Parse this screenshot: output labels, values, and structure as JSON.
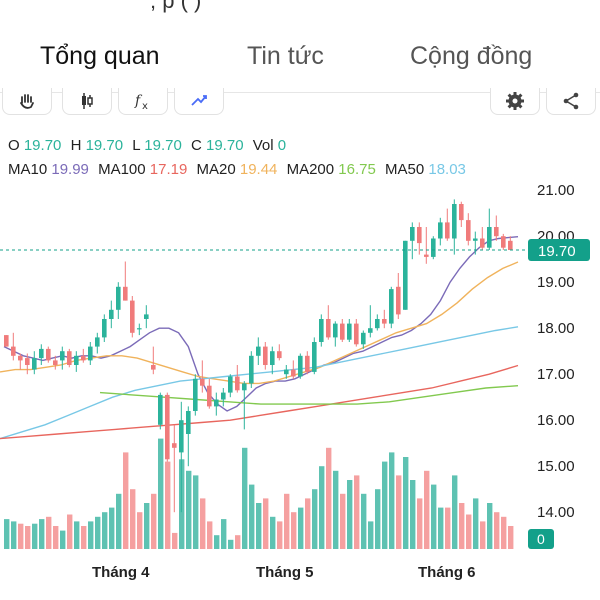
{
  "header": {
    "partial_text": "; p    (      )"
  },
  "tabs": [
    {
      "label": "Tổng quan",
      "active": true
    },
    {
      "label": "Tin tức",
      "active": false
    },
    {
      "label": "Cộng đồng",
      "active": false
    }
  ],
  "toolbar": {
    "left_icons": [
      "hand-icon",
      "candlestick-icon",
      "function-icon",
      "indicator-icon"
    ],
    "right_icons": [
      "gear-icon",
      "share-icon"
    ]
  },
  "ohlc": {
    "o_label": "O",
    "o": "19.70",
    "h_label": "H",
    "h": "19.70",
    "l_label": "L",
    "l": "19.70",
    "c_label": "C",
    "c": "19.70",
    "vol_label": "Vol",
    "vol": "0"
  },
  "ma": {
    "ma10_label": "MA10",
    "ma10": "19.99",
    "ma100_label": "MA100",
    "ma100": "17.19",
    "ma20_label": "MA20",
    "ma20": "19.44",
    "ma200_label": "MA200",
    "ma200": "16.75",
    "ma50_label": "MA50",
    "ma50": "18.03"
  },
  "colors": {
    "up": "#2bb39b",
    "down": "#f07b7b",
    "up_vol": "#5ec2b2",
    "down_vol": "#f5a0a0",
    "ma10": "#7b6bb8",
    "ma100": "#e8665e",
    "ma20": "#f0b35c",
    "ma200": "#82c94f",
    "ma50": "#78c8e6",
    "price_badge": "#13a08a"
  },
  "chart_data": {
    "type": "candlestick",
    "x_labels": [
      "Tháng 4",
      "Tháng 5",
      "Tháng 6"
    ],
    "y_ticks": [
      "21.00",
      "20.00",
      "19.00",
      "18.00",
      "17.00",
      "16.00",
      "15.00",
      "14.00"
    ],
    "ylim": [
      13.2,
      21.3
    ],
    "current_price": "19.70",
    "current_volume": "0",
    "candles": [
      [
        17.85,
        17.85,
        17.6,
        17.6
      ],
      [
        17.6,
        17.9,
        17.3,
        17.4
      ],
      [
        17.4,
        17.45,
        17.1,
        17.3
      ],
      [
        17.35,
        17.45,
        17.0,
        17.2
      ],
      [
        17.1,
        17.5,
        17.0,
        17.35
      ],
      [
        17.35,
        17.65,
        17.2,
        17.55
      ],
      [
        17.55,
        17.6,
        17.25,
        17.3
      ],
      [
        17.3,
        17.4,
        17.1,
        17.2
      ],
      [
        17.3,
        17.6,
        17.1,
        17.5
      ],
      [
        17.5,
        17.55,
        17.15,
        17.2
      ],
      [
        17.2,
        17.5,
        17.05,
        17.4
      ],
      [
        17.4,
        17.55,
        17.25,
        17.3
      ],
      [
        17.3,
        17.7,
        17.2,
        17.6
      ],
      [
        17.6,
        17.9,
        17.45,
        17.8
      ],
      [
        17.8,
        18.3,
        17.7,
        18.2
      ],
      [
        18.2,
        18.6,
        18.0,
        18.4
      ],
      [
        18.4,
        19.0,
        18.2,
        18.9
      ],
      [
        18.9,
        19.45,
        18.6,
        18.6
      ],
      [
        18.6,
        18.7,
        17.8,
        17.9
      ],
      [
        18.0,
        18.1,
        17.85,
        18.0
      ],
      [
        18.2,
        18.5,
        18.0,
        18.3
      ],
      [
        17.2,
        17.6,
        17.0,
        17.1
      ],
      [
        15.9,
        16.6,
        15.8,
        16.55
      ],
      [
        16.55,
        16.6,
        15.1,
        15.15
      ],
      [
        15.5,
        15.9,
        14.0,
        15.4
      ],
      [
        15.3,
        16.4,
        14.0,
        16.0
      ],
      [
        15.7,
        16.3,
        15.0,
        16.2
      ],
      [
        16.2,
        17.0,
        16.1,
        16.9
      ],
      [
        16.9,
        17.3,
        16.6,
        16.75
      ],
      [
        16.75,
        16.9,
        16.25,
        16.3
      ],
      [
        16.3,
        16.6,
        16.1,
        16.45
      ],
      [
        16.45,
        16.7,
        16.3,
        16.6
      ],
      [
        16.6,
        17.0,
        16.5,
        16.95
      ],
      [
        16.95,
        17.2,
        16.6,
        16.65
      ],
      [
        16.65,
        16.85,
        15.8,
        16.8
      ],
      [
        16.8,
        17.5,
        16.7,
        17.4
      ],
      [
        17.4,
        17.8,
        17.2,
        17.6
      ],
      [
        17.6,
        17.7,
        17.1,
        17.2
      ],
      [
        17.2,
        17.6,
        17.0,
        17.5
      ],
      [
        17.5,
        17.65,
        17.3,
        17.35
      ],
      [
        17.0,
        17.2,
        16.9,
        17.1
      ],
      [
        17.1,
        17.3,
        16.9,
        16.95
      ],
      [
        16.95,
        17.45,
        16.9,
        17.4
      ],
      [
        17.4,
        17.5,
        17.0,
        17.05
      ],
      [
        17.05,
        17.8,
        17.0,
        17.7
      ],
      [
        17.7,
        18.3,
        17.6,
        18.2
      ],
      [
        18.2,
        18.5,
        17.75,
        17.8
      ],
      [
        17.8,
        18.15,
        17.6,
        18.1
      ],
      [
        18.1,
        18.2,
        17.7,
        17.75
      ],
      [
        17.75,
        18.2,
        17.7,
        18.1
      ],
      [
        18.1,
        18.2,
        17.6,
        17.65
      ],
      [
        17.65,
        17.95,
        17.55,
        17.9
      ],
      [
        17.9,
        18.5,
        17.8,
        18.0
      ],
      [
        18.0,
        18.3,
        17.95,
        18.2
      ],
      [
        18.2,
        18.4,
        18.0,
        18.1
      ],
      [
        18.1,
        18.9,
        18.0,
        18.85
      ],
      [
        18.9,
        19.2,
        18.2,
        18.3
      ],
      [
        18.4,
        19.9,
        18.4,
        19.9
      ],
      [
        19.9,
        20.3,
        19.5,
        20.2
      ],
      [
        20.2,
        20.3,
        19.6,
        19.85
      ],
      [
        19.6,
        20.2,
        19.4,
        19.55
      ],
      [
        19.55,
        20.0,
        19.5,
        19.95
      ],
      [
        19.95,
        20.4,
        19.8,
        20.3
      ],
      [
        20.3,
        20.6,
        19.9,
        19.95
      ],
      [
        19.95,
        20.8,
        19.6,
        20.7
      ],
      [
        20.7,
        20.75,
        20.2,
        20.35
      ],
      [
        20.35,
        20.5,
        19.8,
        19.9
      ],
      [
        19.9,
        20.1,
        19.6,
        19.95
      ],
      [
        19.95,
        20.2,
        19.7,
        19.75
      ],
      [
        19.75,
        20.6,
        19.7,
        20.2
      ],
      [
        20.2,
        20.45,
        19.9,
        20.0
      ],
      [
        20.0,
        20.05,
        19.7,
        19.75
      ],
      [
        19.9,
        20.0,
        19.7,
        19.7
      ]
    ],
    "volumes": [
      [
        13.85,
        0
      ],
      [
        13.8,
        0
      ],
      [
        13.75,
        1
      ],
      [
        13.7,
        1
      ],
      [
        13.75,
        0
      ],
      [
        13.85,
        0
      ],
      [
        13.9,
        1
      ],
      [
        13.7,
        1
      ],
      [
        13.6,
        0
      ],
      [
        13.95,
        1
      ],
      [
        13.8,
        0
      ],
      [
        13.7,
        1
      ],
      [
        13.8,
        0
      ],
      [
        13.9,
        0
      ],
      [
        14.0,
        0
      ],
      [
        14.1,
        0
      ],
      [
        14.4,
        0
      ],
      [
        15.3,
        1
      ],
      [
        14.5,
        1
      ],
      [
        14.0,
        1
      ],
      [
        14.2,
        0
      ],
      [
        14.4,
        1
      ],
      [
        15.6,
        0
      ],
      [
        15.1,
        1
      ],
      [
        13.55,
        1
      ],
      [
        15.15,
        0
      ],
      [
        14.9,
        0
      ],
      [
        14.8,
        0
      ],
      [
        14.3,
        1
      ],
      [
        13.8,
        1
      ],
      [
        13.5,
        0
      ],
      [
        13.85,
        0
      ],
      [
        13.4,
        0
      ],
      [
        13.5,
        1
      ],
      [
        15.4,
        0
      ],
      [
        14.6,
        0
      ],
      [
        14.2,
        0
      ],
      [
        14.3,
        1
      ],
      [
        13.9,
        0
      ],
      [
        13.8,
        1
      ],
      [
        14.4,
        1
      ],
      [
        14.0,
        1
      ],
      [
        14.1,
        0
      ],
      [
        14.3,
        1
      ],
      [
        14.5,
        0
      ],
      [
        15.0,
        0
      ],
      [
        15.4,
        1
      ],
      [
        14.9,
        0
      ],
      [
        14.4,
        1
      ],
      [
        14.7,
        0
      ],
      [
        14.8,
        1
      ],
      [
        14.4,
        0
      ],
      [
        13.8,
        0
      ],
      [
        14.5,
        0
      ],
      [
        15.1,
        0
      ],
      [
        15.3,
        0
      ],
      [
        14.8,
        1
      ],
      [
        15.2,
        0
      ],
      [
        14.7,
        0
      ],
      [
        14.3,
        1
      ],
      [
        14.9,
        1
      ],
      [
        14.6,
        0
      ],
      [
        14.1,
        0
      ],
      [
        14.1,
        1
      ],
      [
        14.8,
        0
      ],
      [
        14.2,
        1
      ],
      [
        13.95,
        1
      ],
      [
        14.3,
        0
      ],
      [
        13.8,
        1
      ],
      [
        14.2,
        0
      ],
      [
        14.0,
        1
      ],
      [
        13.9,
        1
      ],
      [
        13.7,
        1
      ]
    ],
    "series": [
      {
        "name": "MA10",
        "values": [
          17.6,
          17.5,
          17.4,
          17.35,
          17.3,
          17.35,
          17.4,
          17.35,
          17.4,
          17.4,
          17.35,
          17.4,
          17.5,
          17.6,
          17.75,
          17.9,
          18.0,
          18.0,
          17.9,
          17.6,
          17.0,
          16.6,
          16.35,
          16.2,
          16.3,
          16.5,
          16.7,
          16.8,
          16.85,
          16.85,
          16.9,
          17.0,
          17.1,
          17.2,
          17.25,
          17.35,
          17.45,
          17.5,
          17.6,
          17.7,
          17.8,
          17.85,
          17.95,
          18.1,
          18.3,
          18.6,
          19.0,
          19.3,
          19.55,
          19.75,
          19.9,
          19.95,
          19.97,
          19.99
        ]
      },
      {
        "name": "MA20",
        "values": [
          17.05,
          17.1,
          17.1,
          17.15,
          17.2,
          17.3,
          17.35,
          17.4,
          17.4,
          17.35,
          17.25,
          17.15,
          17.05,
          16.95,
          16.9,
          16.85,
          16.8,
          16.8,
          16.85,
          16.95,
          17.05,
          17.15,
          17.3,
          17.45,
          17.6,
          17.75,
          17.9,
          18.0,
          18.1,
          18.3,
          18.55,
          18.85,
          19.1,
          19.3,
          19.44
        ]
      },
      {
        "name": "MA50",
        "values": [
          15.6,
          15.75,
          15.9,
          16.1,
          16.3,
          16.5,
          16.65,
          16.75,
          16.85,
          16.9,
          16.95,
          17.0,
          17.05,
          17.1,
          17.15,
          17.25,
          17.35,
          17.45,
          17.55,
          17.65,
          17.75,
          17.85,
          17.95,
          18.03
        ]
      },
      {
        "name": "MA100",
        "values": [
          15.6,
          15.65,
          15.7,
          15.75,
          15.8,
          15.85,
          15.9,
          15.95,
          16.0,
          16.1,
          16.2,
          16.3,
          16.4,
          16.5,
          16.6,
          16.7,
          16.85,
          17.0,
          17.19
        ]
      },
      {
        "name": "MA200",
        "values": [
          16.6,
          16.55,
          16.5,
          16.45,
          16.4,
          16.35,
          16.35,
          16.35,
          16.35,
          16.4,
          16.5,
          16.6,
          16.7,
          16.75
        ]
      }
    ]
  }
}
